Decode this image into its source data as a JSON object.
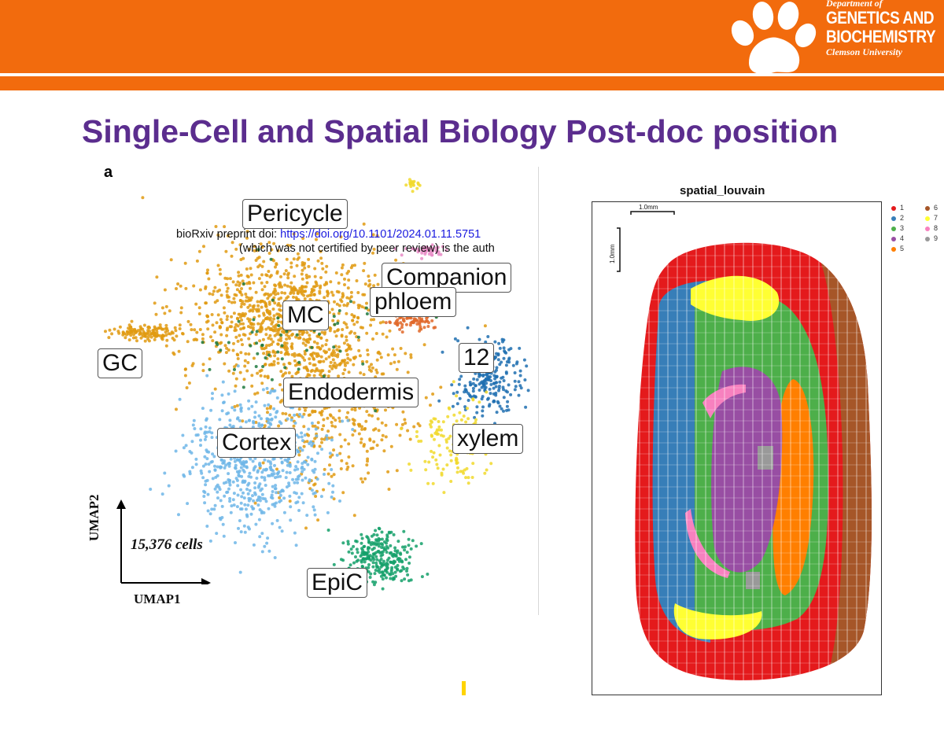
{
  "header": {
    "dept_line1": "Department of",
    "dept_line2": "GENETICS AND",
    "dept_line3": "BIOCHEMISTRY",
    "dept_line4": "Clemson University",
    "brand_color": "#f26b0d",
    "logo_icon": "paw-icon"
  },
  "slide": {
    "title": "Single-Cell and Spatial Biology Post-doc position",
    "title_color": "#5b2d8e"
  },
  "umap_panel": {
    "panel_label": "a",
    "preprint_prefix": "bioRxiv preprint doi: ",
    "preprint_link": "https://doi.org/10.1101/2024.01.11.5751",
    "preprint_line2": "(which was not certified by peer review) is the auth",
    "cell_count": "15,376 cells",
    "xlabel": "UMAP1",
    "ylabel": "UMAP2",
    "cluster_labels": [
      "Pericycle",
      "Companion",
      "phloem",
      "MC",
      "GC",
      "12",
      "Endodermis",
      "Cortex",
      "xylem",
      "EpiC"
    ]
  },
  "spatial_panel": {
    "title": "spatial_louvain",
    "scale_x": "1.0mm",
    "scale_y": "1.0mm",
    "legend": [
      {
        "label": "1",
        "color": "#e41a1c"
      },
      {
        "label": "2",
        "color": "#377eb8"
      },
      {
        "label": "3",
        "color": "#4daf4a"
      },
      {
        "label": "4",
        "color": "#984ea3"
      },
      {
        "label": "5",
        "color": "#ff7f00"
      },
      {
        "label": "6",
        "color": "#a65628"
      },
      {
        "label": "7",
        "color": "#ffff33"
      },
      {
        "label": "8",
        "color": "#f781bf"
      },
      {
        "label": "9",
        "color": "#999999"
      }
    ]
  }
}
